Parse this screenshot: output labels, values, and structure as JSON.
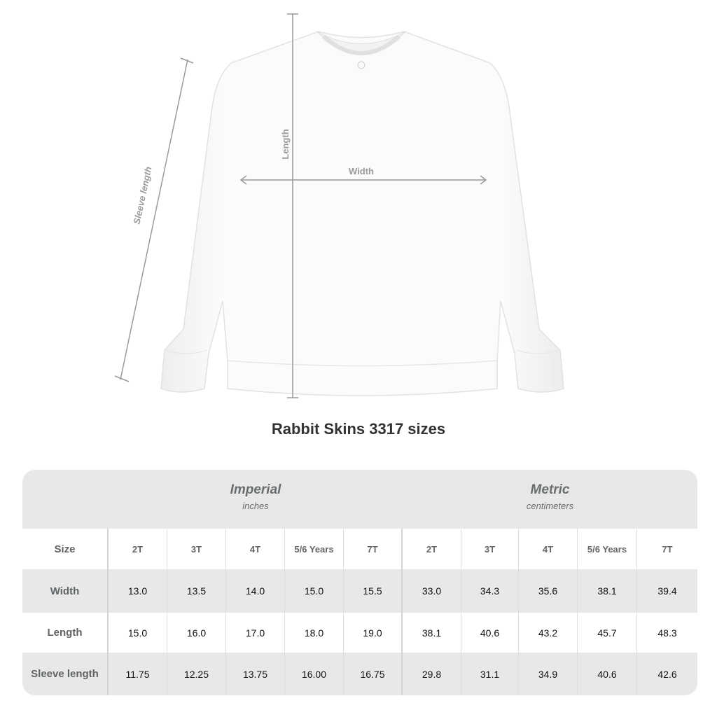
{
  "diagram": {
    "labels": {
      "length": "Length",
      "width": "Width",
      "sleeve": "Sleeve length"
    },
    "garment_color": "#ffffff",
    "line_color": "#9a9a9a"
  },
  "title": "Rabbit Skins 3317 sizes",
  "table": {
    "groups": [
      {
        "name": "Imperial",
        "unit": "inches"
      },
      {
        "name": "Metric",
        "unit": "centimeters"
      }
    ],
    "size_label": "Size",
    "sizes": [
      "2T",
      "3T",
      "4T",
      "5/6 Years",
      "7T",
      "2T",
      "3T",
      "4T",
      "5/6 Years",
      "7T"
    ],
    "rows": [
      {
        "label": "Width",
        "values": [
          "13.0",
          "13.5",
          "14.0",
          "15.0",
          "15.5",
          "33.0",
          "34.3",
          "35.6",
          "38.1",
          "39.4"
        ]
      },
      {
        "label": "Length",
        "values": [
          "15.0",
          "16.0",
          "17.0",
          "18.0",
          "19.0",
          "38.1",
          "40.6",
          "43.2",
          "45.7",
          "48.3"
        ]
      },
      {
        "label": "Sleeve length",
        "values": [
          "11.75",
          "12.25",
          "13.75",
          "16.00",
          "16.75",
          "29.8",
          "31.1",
          "34.9",
          "40.6",
          "42.6"
        ]
      }
    ],
    "header_bg": "#e8e8e8"
  }
}
